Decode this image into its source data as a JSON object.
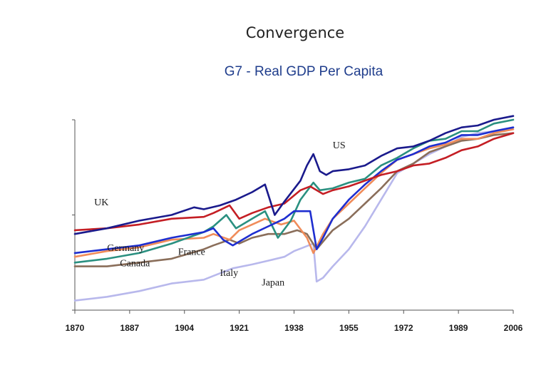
{
  "slide_title": "Convergence",
  "chart_data": {
    "type": "line",
    "title": "G7 - Real GDP Per Capita",
    "xlabel": "",
    "ylabel": "",
    "xlim": [
      1870,
      2006
    ],
    "ylim": [
      0,
      100
    ],
    "x_ticks": [
      1870,
      1887,
      1904,
      1921,
      1938,
      1955,
      1972,
      1989,
      2006
    ],
    "grid": false,
    "legend": "none",
    "colors": {
      "US": "#1a1a8c",
      "UK": "#c41e24",
      "Germany": "#1e2ed0",
      "Canada": "#2a9080",
      "France": "#f08c5a",
      "Italy": "#8a6e5a",
      "Japan": "#b8b8ec",
      "axis": "#555555"
    },
    "series": [
      {
        "name": "US",
        "points": [
          [
            1870,
            40
          ],
          [
            1880,
            43
          ],
          [
            1890,
            47
          ],
          [
            1900,
            50
          ],
          [
            1907,
            54
          ],
          [
            1910,
            53
          ],
          [
            1915,
            55
          ],
          [
            1920,
            58
          ],
          [
            1925,
            62
          ],
          [
            1929,
            66
          ],
          [
            1932,
            50
          ],
          [
            1935,
            57
          ],
          [
            1940,
            68
          ],
          [
            1942,
            76
          ],
          [
            1944,
            82
          ],
          [
            1946,
            73
          ],
          [
            1948,
            71
          ],
          [
            1950,
            73
          ],
          [
            1955,
            74
          ],
          [
            1960,
            76
          ],
          [
            1965,
            81
          ],
          [
            1970,
            85
          ],
          [
            1975,
            86
          ],
          [
            1980,
            89
          ],
          [
            1985,
            93
          ],
          [
            1990,
            96
          ],
          [
            1995,
            97
          ],
          [
            2000,
            100
          ],
          [
            2006,
            102
          ]
        ]
      },
      {
        "name": "UK",
        "points": [
          [
            1870,
            42
          ],
          [
            1880,
            43
          ],
          [
            1890,
            45
          ],
          [
            1900,
            48
          ],
          [
            1910,
            49
          ],
          [
            1913,
            51
          ],
          [
            1918,
            55
          ],
          [
            1921,
            48
          ],
          [
            1925,
            51
          ],
          [
            1930,
            54
          ],
          [
            1935,
            56
          ],
          [
            1940,
            63
          ],
          [
            1943,
            65
          ],
          [
            1947,
            61
          ],
          [
            1950,
            63
          ],
          [
            1955,
            65
          ],
          [
            1960,
            68
          ],
          [
            1965,
            71
          ],
          [
            1970,
            73
          ],
          [
            1975,
            76
          ],
          [
            1980,
            77
          ],
          [
            1985,
            80
          ],
          [
            1990,
            84
          ],
          [
            1995,
            86
          ],
          [
            2000,
            90
          ],
          [
            2006,
            93
          ]
        ]
      },
      {
        "name": "Germany",
        "points": [
          [
            1870,
            30
          ],
          [
            1880,
            32
          ],
          [
            1890,
            34
          ],
          [
            1900,
            38
          ],
          [
            1910,
            41
          ],
          [
            1913,
            43
          ],
          [
            1916,
            37
          ],
          [
            1919,
            34
          ],
          [
            1921,
            36
          ],
          [
            1925,
            40
          ],
          [
            1930,
            44
          ],
          [
            1935,
            48
          ],
          [
            1938,
            52
          ],
          [
            1943,
            52
          ],
          [
            1945,
            32
          ],
          [
            1947,
            38
          ],
          [
            1950,
            48
          ],
          [
            1955,
            58
          ],
          [
            1960,
            66
          ],
          [
            1965,
            73
          ],
          [
            1970,
            79
          ],
          [
            1975,
            82
          ],
          [
            1980,
            86
          ],
          [
            1985,
            88
          ],
          [
            1990,
            92
          ],
          [
            1995,
            92
          ],
          [
            2000,
            94
          ],
          [
            2006,
            96
          ]
        ]
      },
      {
        "name": "Canada",
        "points": [
          [
            1870,
            25
          ],
          [
            1880,
            27
          ],
          [
            1890,
            30
          ],
          [
            1900,
            35
          ],
          [
            1910,
            41
          ],
          [
            1913,
            44
          ],
          [
            1917,
            50
          ],
          [
            1920,
            43
          ],
          [
            1925,
            48
          ],
          [
            1929,
            52
          ],
          [
            1933,
            38
          ],
          [
            1937,
            47
          ],
          [
            1940,
            58
          ],
          [
            1944,
            67
          ],
          [
            1946,
            63
          ],
          [
            1950,
            64
          ],
          [
            1955,
            67
          ],
          [
            1960,
            69
          ],
          [
            1965,
            76
          ],
          [
            1970,
            80
          ],
          [
            1975,
            85
          ],
          [
            1980,
            89
          ],
          [
            1985,
            90
          ],
          [
            1990,
            94
          ],
          [
            1995,
            94
          ],
          [
            2000,
            98
          ],
          [
            2006,
            100
          ]
        ]
      },
      {
        "name": "France",
        "points": [
          [
            1870,
            28
          ],
          [
            1880,
            31
          ],
          [
            1890,
            33
          ],
          [
            1900,
            37
          ],
          [
            1910,
            38
          ],
          [
            1913,
            40
          ],
          [
            1918,
            37
          ],
          [
            1921,
            42
          ],
          [
            1925,
            45
          ],
          [
            1929,
            48
          ],
          [
            1934,
            45
          ],
          [
            1938,
            47
          ],
          [
            1942,
            38
          ],
          [
            1944,
            30
          ],
          [
            1947,
            40
          ],
          [
            1950,
            48
          ],
          [
            1955,
            56
          ],
          [
            1960,
            64
          ],
          [
            1965,
            72
          ],
          [
            1970,
            79
          ],
          [
            1975,
            82
          ],
          [
            1980,
            85
          ],
          [
            1985,
            87
          ],
          [
            1990,
            90
          ],
          [
            1995,
            90
          ],
          [
            2000,
            93
          ],
          [
            2006,
            95
          ]
        ]
      },
      {
        "name": "Italy",
        "points": [
          [
            1870,
            23
          ],
          [
            1880,
            23
          ],
          [
            1890,
            25
          ],
          [
            1900,
            27
          ],
          [
            1910,
            32
          ],
          [
            1913,
            34
          ],
          [
            1918,
            37
          ],
          [
            1921,
            35
          ],
          [
            1925,
            38
          ],
          [
            1930,
            40
          ],
          [
            1935,
            40
          ],
          [
            1939,
            42
          ],
          [
            1942,
            40
          ],
          [
            1945,
            32
          ],
          [
            1948,
            38
          ],
          [
            1950,
            42
          ],
          [
            1955,
            48
          ],
          [
            1960,
            56
          ],
          [
            1965,
            64
          ],
          [
            1970,
            73
          ],
          [
            1975,
            77
          ],
          [
            1980,
            83
          ],
          [
            1985,
            86
          ],
          [
            1990,
            89
          ],
          [
            1995,
            90
          ],
          [
            2000,
            92
          ],
          [
            2006,
            93
          ]
        ]
      },
      {
        "name": "Japan",
        "points": [
          [
            1870,
            5
          ],
          [
            1880,
            7
          ],
          [
            1890,
            10
          ],
          [
            1900,
            14
          ],
          [
            1910,
            16
          ],
          [
            1913,
            18
          ],
          [
            1919,
            22
          ],
          [
            1925,
            24
          ],
          [
            1930,
            26
          ],
          [
            1935,
            28
          ],
          [
            1938,
            31
          ],
          [
            1941,
            33
          ],
          [
            1944,
            35
          ],
          [
            1945,
            15
          ],
          [
            1947,
            17
          ],
          [
            1950,
            23
          ],
          [
            1955,
            32
          ],
          [
            1960,
            44
          ],
          [
            1965,
            58
          ],
          [
            1970,
            72
          ],
          [
            1975,
            77
          ],
          [
            1980,
            82
          ],
          [
            1985,
            86
          ],
          [
            1990,
            91
          ],
          [
            1995,
            93
          ],
          [
            2000,
            94
          ],
          [
            2006,
            96
          ]
        ]
      }
    ],
    "annotations": [
      {
        "text": "US",
        "series": "US",
        "x": 1950,
        "y": 85
      },
      {
        "text": "UK",
        "series": "UK",
        "x": 1876,
        "y": 55
      },
      {
        "text": "Germany",
        "series": "Germany",
        "x": 1880,
        "y": 31
      },
      {
        "text": "Canada",
        "series": "Canada",
        "x": 1884,
        "y": 23
      },
      {
        "text": "France",
        "series": "France",
        "x": 1902,
        "y": 29
      },
      {
        "text": "Italy",
        "series": "Italy",
        "x": 1915,
        "y": 18
      },
      {
        "text": "Japan",
        "series": "Japan",
        "x": 1928,
        "y": 13
      }
    ]
  }
}
